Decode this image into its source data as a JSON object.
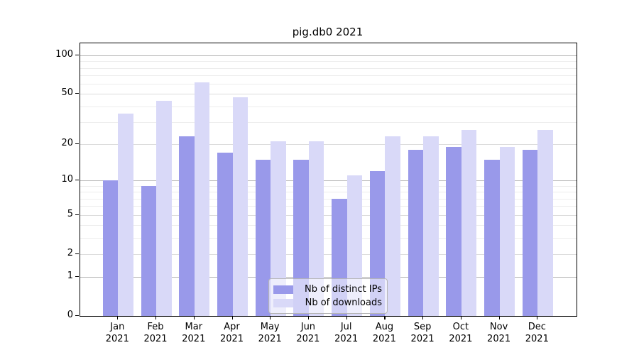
{
  "title": "pig.db0 2021",
  "legend": {
    "items": [
      {
        "label": "Nb of distinct IPs",
        "color": "#9999ea"
      },
      {
        "label": "Nb of downloads",
        "color": "#d9d9f8"
      }
    ]
  },
  "y_axis": {
    "tick_labels": [
      "0",
      "1",
      "2",
      "5",
      "10",
      "20",
      "50",
      "100"
    ]
  },
  "x_axis": {
    "months": [
      "Jan",
      "Feb",
      "Mar",
      "Apr",
      "May",
      "Jun",
      "Jul",
      "Aug",
      "Sep",
      "Oct",
      "Nov",
      "Dec"
    ],
    "year": "2021"
  },
  "chart_data": {
    "type": "bar",
    "title": "pig.db0 2021",
    "categories": [
      "Jan 2021",
      "Feb 2021",
      "Mar 2021",
      "Apr 2021",
      "May 2021",
      "Jun 2021",
      "Jul 2021",
      "Aug 2021",
      "Sep 2021",
      "Oct 2021",
      "Nov 2021",
      "Dec 2021"
    ],
    "series": [
      {
        "name": "Nb of distinct IPs",
        "color": "#9999ea",
        "values": [
          10,
          9,
          23,
          17,
          15,
          15,
          7,
          12,
          18,
          19,
          15,
          18
        ]
      },
      {
        "name": "Nb of downloads",
        "color": "#d9d9f8",
        "values": [
          35,
          44,
          62,
          47,
          21,
          21,
          11,
          23,
          23,
          26,
          19,
          26
        ]
      }
    ],
    "xlabel": "",
    "ylabel": "",
    "yscale": "symlog",
    "ylim": [
      0,
      115
    ],
    "yticks_labeled": [
      0,
      1,
      2,
      5,
      10,
      20,
      50,
      100
    ],
    "yticks_minor": [
      3,
      4,
      6,
      7,
      8,
      9,
      30,
      40,
      60,
      70,
      80,
      90
    ],
    "grid": true,
    "legend_position": "inside-bottom-center",
    "colors": {
      "grid_power10": "#b8b8b8",
      "grid_labeled": "#dcdcdc",
      "grid_minor": "#ededed",
      "axis": "#000000",
      "background": "#ffffff"
    }
  }
}
